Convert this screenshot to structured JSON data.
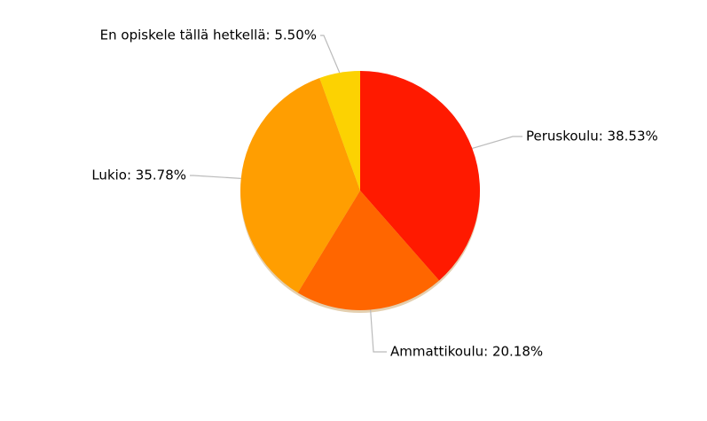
{
  "chart_data": {
    "type": "pie",
    "values": [
      38.53,
      20.18,
      35.78,
      5.5
    ],
    "value_labels": [
      "Peruskoulu: 38.53%",
      "Ammattikoulu: 20.18%",
      "Lukio: 35.78%",
      "En opiskele tällä hetkellä: 5.50%"
    ],
    "colors": [
      "#ff1a00",
      "#ff6600",
      "#ff9e01",
      "#fcd202"
    ]
  }
}
